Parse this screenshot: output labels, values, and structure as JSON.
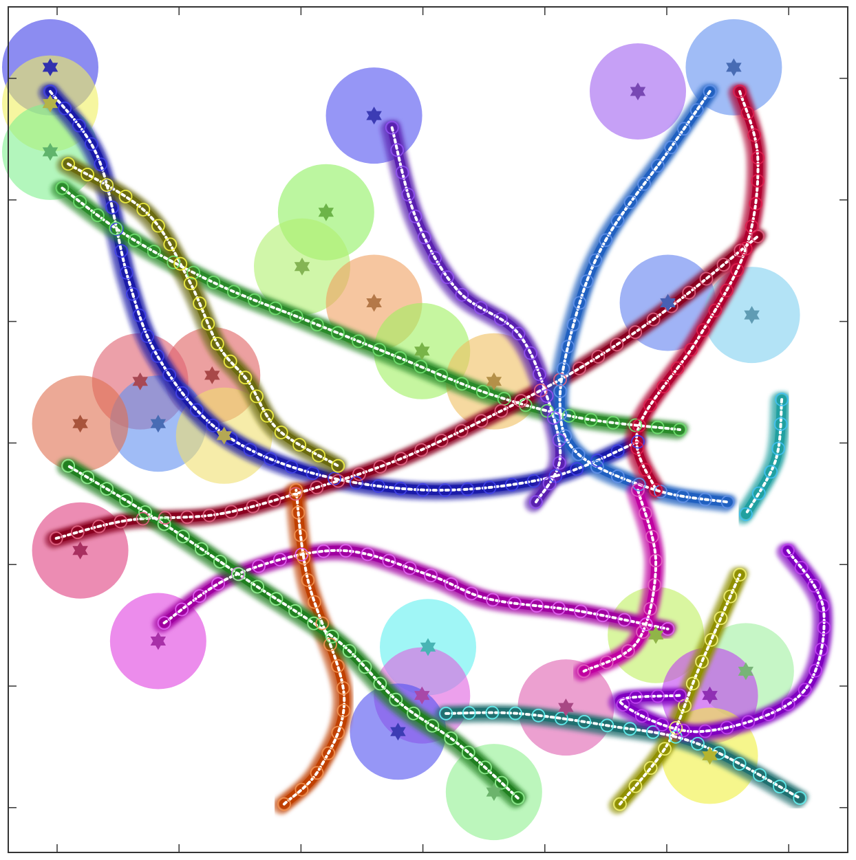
{
  "figure": {
    "kind": "multi-agent trajectory plot",
    "title": "",
    "axes_box": true,
    "tick_labels_shown": false,
    "legend": "none",
    "x_tick_count": 7,
    "y_tick_count": 7
  },
  "colors": {
    "background": "#ffffff",
    "axes": "#333333",
    "mean_path": "#ffffff",
    "waypoint_ring": "#ffffff"
  },
  "agents": [
    {
      "id": "a1",
      "color": "#1a1aa8",
      "goal_color": "#4040e8",
      "start": [
        0.7,
        13.0
      ],
      "goal": [
        0.7,
        13.0
      ],
      "path": [
        [
          0.7,
          12.6
        ],
        [
          1.5,
          11.5
        ],
        [
          2.0,
          9.5
        ],
        [
          2.5,
          8.2
        ],
        [
          3.5,
          7.0
        ],
        [
          5.0,
          6.3
        ],
        [
          7.0,
          6.0
        ],
        [
          9.0,
          6.2
        ],
        [
          10.5,
          6.8
        ]
      ]
    },
    {
      "id": "a2",
      "color": "#2a8a2a",
      "goal_color": "#70e070",
      "start": [
        0.8,
        11.6
      ],
      "goal": [
        0.8,
        11.6
      ],
      "path": [
        [
          0.9,
          11.0
        ],
        [
          2.0,
          10.2
        ],
        [
          3.5,
          9.4
        ],
        [
          5.0,
          8.8
        ],
        [
          6.5,
          8.2
        ],
        [
          8.0,
          7.6
        ],
        [
          9.5,
          7.2
        ],
        [
          11.2,
          7.0
        ]
      ]
    },
    {
      "id": "a3",
      "color": "#6a6a10",
      "goal_color": "#f0f040",
      "start": [
        0.8,
        12.2
      ],
      "goal": [
        0.8,
        12.2
      ],
      "path": [
        [
          1.0,
          11.4
        ],
        [
          2.3,
          10.6
        ],
        [
          3.0,
          9.5
        ],
        [
          3.5,
          8.4
        ],
        [
          4.0,
          7.8
        ],
        [
          4.5,
          7.0
        ],
        [
          5.5,
          6.4
        ]
      ]
    },
    {
      "id": "a4",
      "color": "#8a0020",
      "goal_color": "#e06080",
      "start": [
        1.2,
        5.0
      ],
      "goal": [
        1.2,
        5.0
      ],
      "path": [
        [
          0.8,
          5.2
        ],
        [
          2.0,
          5.5
        ],
        [
          3.5,
          5.6
        ],
        [
          5.0,
          6.0
        ],
        [
          6.5,
          6.5
        ],
        [
          8.0,
          7.2
        ],
        [
          9.5,
          8.0
        ],
        [
          11.0,
          9.0
        ],
        [
          12.5,
          10.2
        ]
      ]
    },
    {
      "id": "a5",
      "color": "#a000a0",
      "goal_color": "#e060f0",
      "start": [
        2.5,
        3.5
      ],
      "goal": [
        2.5,
        3.5
      ],
      "path": [
        [
          2.6,
          3.8
        ],
        [
          3.8,
          4.6
        ],
        [
          5.5,
          5.0
        ],
        [
          7.0,
          4.6
        ],
        [
          8.0,
          4.2
        ],
        [
          9.5,
          4.0
        ],
        [
          11.0,
          3.7
        ]
      ]
    },
    {
      "id": "a6",
      "color": "#5a20b0",
      "goal_color": "#9050f0",
      "start": [
        6.1,
        12.2
      ],
      "goal": [
        6.1,
        12.2
      ],
      "path": [
        [
          6.4,
          12.0
        ],
        [
          6.8,
          10.5
        ],
        [
          7.5,
          9.3
        ],
        [
          8.5,
          8.6
        ],
        [
          9.0,
          7.5
        ],
        [
          9.2,
          6.5
        ],
        [
          8.8,
          5.8
        ]
      ]
    },
    {
      "id": "a7",
      "color": "#2060c0",
      "goal_color": "#6090e8",
      "start": [
        12.0,
        13.0
      ],
      "goal": [
        12.0,
        13.0
      ],
      "path": [
        [
          11.7,
          12.6
        ],
        [
          11.0,
          11.6
        ],
        [
          10.0,
          10.2
        ],
        [
          9.5,
          9.0
        ],
        [
          9.2,
          7.5
        ],
        [
          9.5,
          6.6
        ],
        [
          10.8,
          6.0
        ],
        [
          12.0,
          5.8
        ]
      ]
    },
    {
      "id": "a8",
      "color": "#b00030",
      "goal_color": "#e02050",
      "start": [
        12.5,
        12.8
      ],
      "goal": [
        12.5,
        12.8
      ],
      "path": [
        [
          12.2,
          12.6
        ],
        [
          12.5,
          11.5
        ],
        [
          12.3,
          10.0
        ],
        [
          11.5,
          8.5
        ],
        [
          10.5,
          7.0
        ],
        [
          10.8,
          6.0
        ]
      ]
    },
    {
      "id": "a9",
      "color": "#c04000",
      "goal_color": "#f09050",
      "start": [
        6.1,
        9.1
      ],
      "goal": [
        6.1,
        9.1
      ],
      "path": [
        [
          4.6,
          0.8
        ],
        [
          5.2,
          1.4
        ],
        [
          5.6,
          2.6
        ],
        [
          5.0,
          4.5
        ],
        [
          4.8,
          6.0
        ]
      ]
    },
    {
      "id": "a10",
      "color": "#207070",
      "goal_color": "#60f0f0",
      "start": [
        6.7,
        2.3
      ],
      "goal": [
        6.7,
        2.3
      ],
      "path": [
        [
          7.3,
          2.3
        ],
        [
          8.5,
          2.3
        ],
        [
          10.0,
          2.1
        ],
        [
          11.5,
          1.8
        ],
        [
          13.2,
          0.9
        ]
      ]
    },
    {
      "id": "a11",
      "color": "#208020",
      "goal_color": "#90f090",
      "start": [
        8.1,
        1.0
      ],
      "goal": [
        8.1,
        1.0
      ],
      "path": [
        [
          8.5,
          0.9
        ],
        [
          7.5,
          1.8
        ],
        [
          6.5,
          2.5
        ],
        [
          5.5,
          3.5
        ],
        [
          4.0,
          4.5
        ],
        [
          2.5,
          5.5
        ],
        [
          1.0,
          6.4
        ]
      ]
    },
    {
      "id": "a12",
      "color": "#20a0a0",
      "goal_color": "#40c0f0",
      "start": [
        12.4,
        8.9
      ],
      "goal": [
        12.4,
        8.9
      ],
      "path": [
        [
          12.9,
          7.5
        ],
        [
          12.8,
          6.5
        ],
        [
          12.3,
          5.6
        ]
      ]
    },
    {
      "id": "a13",
      "color": "#909000",
      "goal_color": "#f0f070",
      "start": [
        11.7,
        1.6
      ],
      "goal": [
        11.7,
        1.6
      ],
      "path": [
        [
          10.2,
          0.8
        ],
        [
          11.0,
          1.8
        ],
        [
          11.5,
          3.0
        ],
        [
          12.2,
          4.6
        ]
      ]
    },
    {
      "id": "a14",
      "color": "#8000c0",
      "goal_color": "#c040f0",
      "start": [
        11.7,
        2.6
      ],
      "goal": [
        11.7,
        2.6
      ],
      "path": [
        [
          13.0,
          5.0
        ],
        [
          13.6,
          4.0
        ],
        [
          13.2,
          2.6
        ],
        [
          11.5,
          2.0
        ],
        [
          10.2,
          2.5
        ],
        [
          11.2,
          2.6
        ]
      ]
    },
    {
      "id": "a15",
      "color": "#c000a0",
      "goal_color": "#e060c0",
      "start": [
        9.3,
        2.4
      ],
      "goal": [
        9.3,
        2.4
      ],
      "path": [
        [
          10.5,
          6.0
        ],
        [
          10.8,
          4.8
        ],
        [
          10.5,
          3.5
        ],
        [
          9.6,
          3.0
        ]
      ]
    }
  ],
  "goal_regions": [
    {
      "color": "#4040e8",
      "at": [
        0.7,
        13.0
      ]
    },
    {
      "color": "#f0f060",
      "at": [
        0.7,
        12.4
      ]
    },
    {
      "color": "#80f090",
      "at": [
        0.7,
        11.6
      ]
    },
    {
      "color": "#5050f0",
      "at": [
        6.1,
        12.2
      ]
    },
    {
      "color": "#a060f0",
      "at": [
        10.5,
        12.6
      ]
    },
    {
      "color": "#6090f0",
      "at": [
        12.1,
        13.0
      ]
    },
    {
      "color": "#90f060",
      "at": [
        5.3,
        10.6
      ]
    },
    {
      "color": "#b0f070",
      "at": [
        4.9,
        9.7
      ]
    },
    {
      "color": "#f0a060",
      "at": [
        6.1,
        9.1
      ]
    },
    {
      "color": "#a0f060",
      "at": [
        6.9,
        8.3
      ]
    },
    {
      "color": "#f0c060",
      "at": [
        8.1,
        7.8
      ]
    },
    {
      "color": "#6080f0",
      "at": [
        11.0,
        9.1
      ]
    },
    {
      "color": "#80d0f0",
      "at": [
        12.4,
        8.9
      ]
    },
    {
      "color": "#e06060",
      "at": [
        3.4,
        7.9
      ]
    },
    {
      "color": "#e06070",
      "at": [
        2.2,
        7.8
      ]
    },
    {
      "color": "#6090f0",
      "at": [
        2.5,
        7.1
      ]
    },
    {
      "color": "#f0e070",
      "at": [
        3.6,
        6.9
      ]
    },
    {
      "color": "#e07050",
      "at": [
        1.2,
        7.1
      ]
    },
    {
      "color": "#e04080",
      "at": [
        1.2,
        5.0
      ]
    },
    {
      "color": "#e040e0",
      "at": [
        2.5,
        3.5
      ]
    },
    {
      "color": "#60f0f0",
      "at": [
        7.0,
        3.4
      ]
    },
    {
      "color": "#e060e0",
      "at": [
        6.9,
        2.6
      ]
    },
    {
      "color": "#5050f0",
      "at": [
        6.5,
        2.0
      ]
    },
    {
      "color": "#90f090",
      "at": [
        8.1,
        1.0
      ]
    },
    {
      "color": "#e060b0",
      "at": [
        9.3,
        2.4
      ]
    },
    {
      "color": "#c0f060",
      "at": [
        10.8,
        3.6
      ]
    },
    {
      "color": "#a0f0a0",
      "at": [
        12.3,
        3.0
      ]
    },
    {
      "color": "#c040f0",
      "at": [
        11.7,
        2.6
      ]
    },
    {
      "color": "#f0f040",
      "at": [
        11.7,
        1.6
      ]
    }
  ]
}
